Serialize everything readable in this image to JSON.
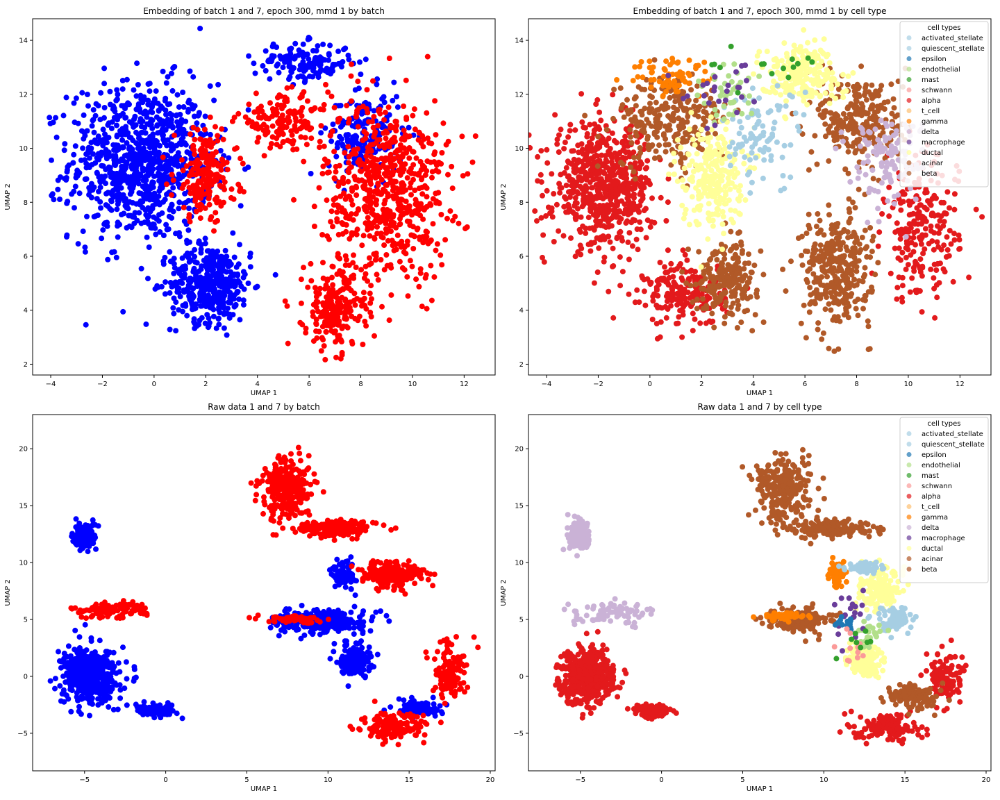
{
  "figure": {
    "panels": [
      {
        "title": "Embedding of batch 1 and 7, epoch 300, mmd 1 by batch",
        "xlabel": "UMAP 1",
        "ylabel": "UMAP 2",
        "xlim": [
          -4.7,
          13.2
        ],
        "ylim": [
          1.6,
          14.8
        ],
        "xticks": [
          -4,
          -2,
          0,
          2,
          4,
          6,
          8,
          10,
          12
        ],
        "yticks": [
          2,
          4,
          6,
          8,
          10,
          12,
          14
        ],
        "legend": null
      },
      {
        "title": "Embedding of batch 1 and 7, epoch 300, mmd 1 by cell type",
        "xlabel": "UMAP 1",
        "ylabel": "UMAP 2",
        "xlim": [
          -4.7,
          13.2
        ],
        "ylim": [
          1.6,
          14.8
        ],
        "xticks": [
          -4,
          -2,
          0,
          2,
          4,
          6,
          8,
          10,
          12
        ],
        "yticks": [
          2,
          4,
          6,
          8,
          10,
          12,
          14
        ],
        "legend": {
          "title": "cell types",
          "placement": "upper right"
        }
      },
      {
        "title": "Raw data 1 and 7 by batch",
        "xlabel": "UMAP 1",
        "ylabel": "UMAP 2",
        "xlim": [
          -8.2,
          20.3
        ],
        "ylim": [
          -8.3,
          23.0
        ],
        "xticks": [
          -5,
          0,
          5,
          10,
          15,
          20
        ],
        "yticks": [
          -5,
          0,
          5,
          10,
          15,
          20
        ],
        "legend": null
      },
      {
        "title": "Raw data 1 and 7 by cell type",
        "xlabel": "UMAP 1",
        "ylabel": "UMAP 2",
        "xlim": [
          -8.2,
          20.3
        ],
        "ylim": [
          -8.3,
          23.0
        ],
        "xticks": [
          -5,
          0,
          5,
          10,
          15,
          20
        ],
        "yticks": [
          -5,
          0,
          5,
          10,
          15,
          20
        ],
        "legend": {
          "title": "cell types",
          "placement": "upper right"
        }
      }
    ],
    "legend_entries": [
      {
        "label": "activated_stellate",
        "color": "#a6cee3"
      },
      {
        "label": "quiescent_stellate",
        "color": "#a6cee3"
      },
      {
        "label": "epsilon",
        "color": "#1f78b4"
      },
      {
        "label": "endothelial",
        "color": "#b2df8a"
      },
      {
        "label": "mast",
        "color": "#33a02c"
      },
      {
        "label": "schwann",
        "color": "#fb9a99"
      },
      {
        "label": "alpha",
        "color": "#e31a1c"
      },
      {
        "label": "t_cell",
        "color": "#fdbf6f"
      },
      {
        "label": "gamma",
        "color": "#ff7f00"
      },
      {
        "label": "delta",
        "color": "#cab2d6"
      },
      {
        "label": "macrophage",
        "color": "#6a3d9a"
      },
      {
        "label": "ductal",
        "color": "#ffff99"
      },
      {
        "label": "acinar",
        "color": "#b15928"
      },
      {
        "label": "beta",
        "color": "#b15928"
      }
    ],
    "batch_colors": {
      "batch_blue": "#0000ff",
      "batch_red": "#ff0000"
    }
  },
  "chart_data": [
    {
      "type": "scatter",
      "title": "Embedding of batch 1 and 7, epoch 300, mmd 1 by batch",
      "xlabel": "UMAP 1",
      "ylabel": "UMAP 2",
      "xlim": [
        -4.7,
        13.2
      ],
      "ylim": [
        1.6,
        14.8
      ],
      "grid": false,
      "clusters": [
        {
          "color": "#0000ff",
          "x": -0.5,
          "y": 9.5,
          "sx": 2.3,
          "sy": 2.4,
          "n": 900
        },
        {
          "color": "#0000ff",
          "x": 2.2,
          "y": 5.0,
          "sx": 1.3,
          "sy": 1.2,
          "n": 420
        },
        {
          "color": "#0000ff",
          "x": 5.8,
          "y": 13.2,
          "sx": 1.6,
          "sy": 0.6,
          "n": 150
        },
        {
          "color": "#0000ff",
          "x": 8.2,
          "y": 10.5,
          "sx": 1.2,
          "sy": 1.3,
          "n": 180
        },
        {
          "color": "#ff0000",
          "x": 9.0,
          "y": 8.5,
          "sx": 2.0,
          "sy": 2.8,
          "n": 650
        },
        {
          "color": "#ff0000",
          "x": 7.0,
          "y": 4.0,
          "sx": 1.0,
          "sy": 1.2,
          "n": 220
        },
        {
          "color": "#ff0000",
          "x": 2.0,
          "y": 9.0,
          "sx": 1.0,
          "sy": 1.4,
          "n": 200
        },
        {
          "color": "#ff0000",
          "x": 5.0,
          "y": 11.0,
          "sx": 1.5,
          "sy": 0.8,
          "n": 150
        }
      ]
    },
    {
      "type": "scatter",
      "title": "Embedding of batch 1 and 7, epoch 300, mmd 1 by cell type",
      "xlabel": "UMAP 1",
      "ylabel": "UMAP 2",
      "xlim": [
        -4.7,
        13.2
      ],
      "ylim": [
        1.6,
        14.8
      ],
      "grid": false,
      "clusters": [
        {
          "color": "#e31a1c",
          "x": -1.8,
          "y": 8.6,
          "sx": 1.6,
          "sy": 1.9,
          "n": 650
        },
        {
          "color": "#e31a1c",
          "x": 1.4,
          "y": 4.6,
          "sx": 1.3,
          "sy": 1.0,
          "n": 200
        },
        {
          "color": "#e31a1c",
          "x": 10.5,
          "y": 7.0,
          "sx": 1.2,
          "sy": 2.2,
          "n": 230
        },
        {
          "color": "#b15928",
          "x": 0.8,
          "y": 11.0,
          "sx": 1.8,
          "sy": 1.4,
          "n": 260
        },
        {
          "color": "#b15928",
          "x": 3.0,
          "y": 5.2,
          "sx": 1.0,
          "sy": 1.1,
          "n": 220
        },
        {
          "color": "#b15928",
          "x": 7.2,
          "y": 5.5,
          "sx": 1.1,
          "sy": 1.8,
          "n": 330
        },
        {
          "color": "#b15928",
          "x": 8.2,
          "y": 11.0,
          "sx": 1.4,
          "sy": 1.5,
          "n": 260
        },
        {
          "color": "#ffff99",
          "x": 2.4,
          "y": 9.0,
          "sx": 1.0,
          "sy": 1.6,
          "n": 240
        },
        {
          "color": "#ffff99",
          "x": 5.8,
          "y": 12.8,
          "sx": 1.3,
          "sy": 0.9,
          "n": 210
        },
        {
          "color": "#cab2d6",
          "x": 9.2,
          "y": 9.6,
          "sx": 1.2,
          "sy": 1.4,
          "n": 120
        },
        {
          "color": "#a6cee3",
          "x": 4.2,
          "y": 10.5,
          "sx": 1.4,
          "sy": 1.5,
          "n": 90
        },
        {
          "color": "#ff7f00",
          "x": 1.0,
          "y": 12.6,
          "sx": 1.3,
          "sy": 0.6,
          "n": 70
        },
        {
          "color": "#b2df8a",
          "x": 3.0,
          "y": 12.0,
          "sx": 1.0,
          "sy": 1.0,
          "n": 40
        },
        {
          "color": "#6a3d9a",
          "x": 2.5,
          "y": 12.0,
          "sx": 1.5,
          "sy": 1.0,
          "n": 25
        },
        {
          "color": "#33a02c",
          "x": 4.5,
          "y": 13.0,
          "sx": 2.0,
          "sy": 0.8,
          "n": 15
        }
      ]
    },
    {
      "type": "scatter",
      "title": "Raw data 1 and 7 by batch",
      "xlabel": "UMAP 1",
      "ylabel": "UMAP 2",
      "xlim": [
        -8.2,
        20.3
      ],
      "ylim": [
        -8.3,
        23.0
      ],
      "grid": false,
      "clusters": [
        {
          "color": "#0000ff",
          "x": -5.0,
          "y": 12.3,
          "sx": 0.6,
          "sy": 1.0,
          "n": 150
        },
        {
          "color": "#0000ff",
          "x": -4.6,
          "y": 0.0,
          "sx": 1.4,
          "sy": 2.0,
          "n": 500
        },
        {
          "color": "#0000ff",
          "x": -0.6,
          "y": -3.0,
          "sx": 1.0,
          "sy": 0.4,
          "n": 100
        },
        {
          "color": "#0000ff",
          "x": 9.5,
          "y": 4.8,
          "sx": 2.2,
          "sy": 0.8,
          "n": 320
        },
        {
          "color": "#0000ff",
          "x": 11.7,
          "y": 1.5,
          "sx": 0.8,
          "sy": 1.2,
          "n": 170
        },
        {
          "color": "#0000ff",
          "x": 15.5,
          "y": -2.8,
          "sx": 1.2,
          "sy": 0.6,
          "n": 100
        },
        {
          "color": "#0000ff",
          "x": 11.0,
          "y": 9.0,
          "sx": 0.6,
          "sy": 1.0,
          "n": 80
        },
        {
          "color": "#ff0000",
          "x": 7.5,
          "y": 16.5,
          "sx": 1.4,
          "sy": 2.2,
          "n": 280
        },
        {
          "color": "#ff0000",
          "x": 10.5,
          "y": 13.0,
          "sx": 2.0,
          "sy": 0.6,
          "n": 180
        },
        {
          "color": "#ff0000",
          "x": 14.0,
          "y": 9.0,
          "sx": 1.6,
          "sy": 1.0,
          "n": 200
        },
        {
          "color": "#ff0000",
          "x": -3.5,
          "y": 5.8,
          "sx": 2.0,
          "sy": 0.6,
          "n": 100
        },
        {
          "color": "#ff0000",
          "x": 17.5,
          "y": 0.5,
          "sx": 0.9,
          "sy": 2.0,
          "n": 120
        },
        {
          "color": "#ff0000",
          "x": 14.0,
          "y": -4.5,
          "sx": 1.6,
          "sy": 1.0,
          "n": 150
        },
        {
          "color": "#ff0000",
          "x": 8.0,
          "y": 5.0,
          "sx": 1.5,
          "sy": 0.25,
          "n": 80
        }
      ]
    },
    {
      "type": "scatter",
      "title": "Raw data 1 and 7 by cell type",
      "xlabel": "UMAP 1",
      "ylabel": "UMAP 2",
      "xlim": [
        -8.2,
        20.3
      ],
      "ylim": [
        -8.3,
        23.0
      ],
      "grid": false,
      "clusters": [
        {
          "color": "#cab2d6",
          "x": -5.0,
          "y": 12.3,
          "sx": 0.6,
          "sy": 1.0,
          "n": 150
        },
        {
          "color": "#cab2d6",
          "x": -3.0,
          "y": 5.5,
          "sx": 2.0,
          "sy": 0.8,
          "n": 80
        },
        {
          "color": "#e31a1c",
          "x": -4.6,
          "y": 0.0,
          "sx": 1.4,
          "sy": 2.0,
          "n": 480
        },
        {
          "color": "#e31a1c",
          "x": -0.6,
          "y": -3.0,
          "sx": 1.0,
          "sy": 0.4,
          "n": 90
        },
        {
          "color": "#e31a1c",
          "x": 17.5,
          "y": 0.0,
          "sx": 0.9,
          "sy": 2.0,
          "n": 120
        },
        {
          "color": "#e31a1c",
          "x": 14.0,
          "y": -4.5,
          "sx": 1.6,
          "sy": 1.0,
          "n": 140
        },
        {
          "color": "#b15928",
          "x": 7.5,
          "y": 16.5,
          "sx": 1.4,
          "sy": 2.2,
          "n": 280
        },
        {
          "color": "#b15928",
          "x": 10.5,
          "y": 13.0,
          "sx": 2.0,
          "sy": 0.6,
          "n": 180
        },
        {
          "color": "#b15928",
          "x": 8.5,
          "y": 5.0,
          "sx": 1.5,
          "sy": 0.8,
          "n": 220
        },
        {
          "color": "#b15928",
          "x": 15.5,
          "y": -1.8,
          "sx": 1.4,
          "sy": 0.9,
          "n": 120
        },
        {
          "color": "#ff7f00",
          "x": 10.8,
          "y": 9.0,
          "sx": 0.4,
          "sy": 1.0,
          "n": 70
        },
        {
          "color": "#ff7f00",
          "x": 7.5,
          "y": 5.3,
          "sx": 1.2,
          "sy": 0.25,
          "n": 60
        },
        {
          "color": "#ffff99",
          "x": 13.5,
          "y": 7.5,
          "sx": 1.0,
          "sy": 1.5,
          "n": 160
        },
        {
          "color": "#ffff99",
          "x": 12.5,
          "y": 1.5,
          "sx": 0.8,
          "sy": 1.2,
          "n": 170
        },
        {
          "color": "#a6cee3",
          "x": 12.5,
          "y": 9.5,
          "sx": 0.9,
          "sy": 0.4,
          "n": 70
        },
        {
          "color": "#a6cee3",
          "x": 14.5,
          "y": 5.0,
          "sx": 1.2,
          "sy": 1.0,
          "n": 70
        },
        {
          "color": "#b2df8a",
          "x": 12.8,
          "y": 3.5,
          "sx": 0.7,
          "sy": 0.8,
          "n": 25
        },
        {
          "color": "#6a3d9a",
          "x": 11.5,
          "y": 5.0,
          "sx": 1.0,
          "sy": 2.0,
          "n": 20
        },
        {
          "color": "#1f78b4",
          "x": 11.3,
          "y": 4.8,
          "sx": 0.5,
          "sy": 0.5,
          "n": 15
        },
        {
          "color": "#fb9a99",
          "x": 12.0,
          "y": 2.5,
          "sx": 1.0,
          "sy": 1.5,
          "n": 12
        },
        {
          "color": "#33a02c",
          "x": 12.3,
          "y": 2.5,
          "sx": 0.8,
          "sy": 1.5,
          "n": 8
        }
      ]
    }
  ]
}
